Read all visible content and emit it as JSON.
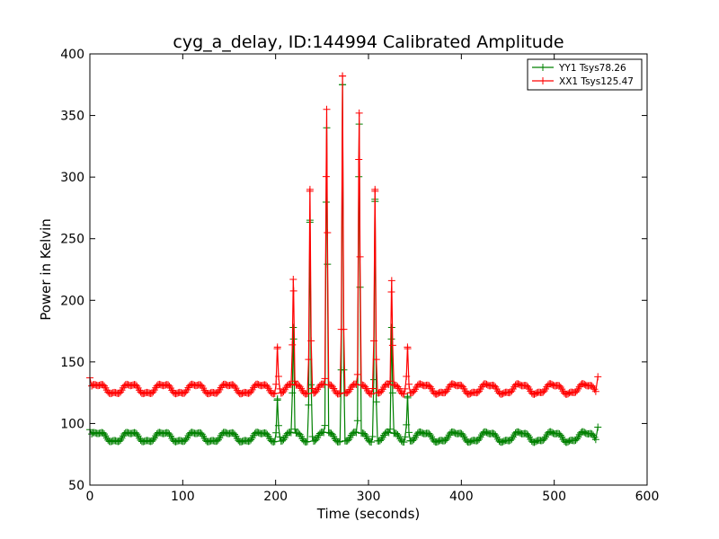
{
  "chart_data": {
    "type": "line",
    "title": "cyg_a_delay, ID:144994 Calibrated Amplitude",
    "xlabel": "Time (seconds)",
    "ylabel": "Power in Kelvin",
    "xlim": [
      0,
      600
    ],
    "ylim": [
      50,
      400
    ],
    "xticks": [
      "0",
      "100",
      "200",
      "300",
      "400",
      "500",
      "600"
    ],
    "yticks": [
      "50",
      "100",
      "150",
      "200",
      "250",
      "300",
      "350",
      "400"
    ],
    "marker": "+",
    "legend_position": "top-right",
    "series": [
      {
        "name": "YY1 Tsys78.26",
        "color": "#008000",
        "baseline": 89,
        "ripple_amplitude": 4,
        "ripple_period": 35,
        "peaks": [
          {
            "x": 202,
            "y": 120
          },
          {
            "x": 219,
            "y": 178
          },
          {
            "x": 237,
            "y": 265
          },
          {
            "x": 255,
            "y": 340
          },
          {
            "x": 272,
            "y": 375
          },
          {
            "x": 290,
            "y": 343
          },
          {
            "x": 307,
            "y": 282
          },
          {
            "x": 325,
            "y": 178
          },
          {
            "x": 342,
            "y": 122
          }
        ],
        "start": {
          "x": 0,
          "y": 95
        },
        "end": {
          "x": 547,
          "y": 97
        }
      },
      {
        "name": "XX1 Tsys125.47",
        "color": "#ff0000",
        "baseline": 128,
        "ripple_amplitude": 4,
        "ripple_period": 35,
        "peaks": [
          {
            "x": 202,
            "y": 162
          },
          {
            "x": 219,
            "y": 217
          },
          {
            "x": 237,
            "y": 290
          },
          {
            "x": 255,
            "y": 355
          },
          {
            "x": 272,
            "y": 382
          },
          {
            "x": 290,
            "y": 352
          },
          {
            "x": 307,
            "y": 290
          },
          {
            "x": 325,
            "y": 216
          },
          {
            "x": 342,
            "y": 162
          }
        ],
        "start": {
          "x": 0,
          "y": 137
        },
        "end": {
          "x": 547,
          "y": 138
        }
      }
    ]
  }
}
